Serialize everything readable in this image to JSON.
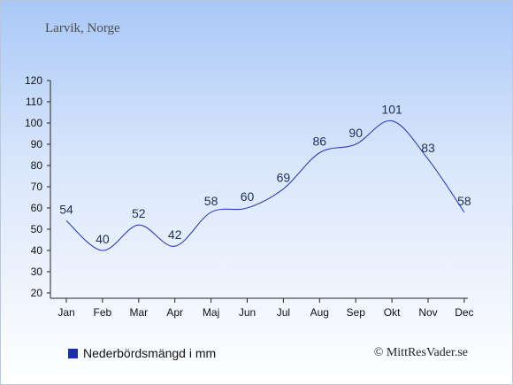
{
  "title": "Larvik, Norge",
  "legend": {
    "label": "Nederbördsmängd i mm"
  },
  "credit": "© MittResVader.se",
  "colors": {
    "line": "#2e40b5",
    "swatch": "#1a2fa8"
  },
  "chart_data": {
    "type": "line",
    "title": "Larvik, Norge",
    "categories": [
      "Jan",
      "Feb",
      "Mar",
      "Apr",
      "Maj",
      "Jun",
      "Jul",
      "Aug",
      "Sep",
      "Okt",
      "Nov",
      "Dec"
    ],
    "series": [
      {
        "name": "Nederbördsmängd i mm",
        "values": [
          54,
          40,
          52,
          42,
          58,
          60,
          69,
          86,
          90,
          101,
          83,
          58
        ]
      }
    ],
    "ylim": [
      20,
      120
    ],
    "yticks": [
      20,
      30,
      40,
      50,
      60,
      70,
      80,
      90,
      100,
      110,
      120
    ],
    "grid": false,
    "legend_position": "bottom-left"
  }
}
